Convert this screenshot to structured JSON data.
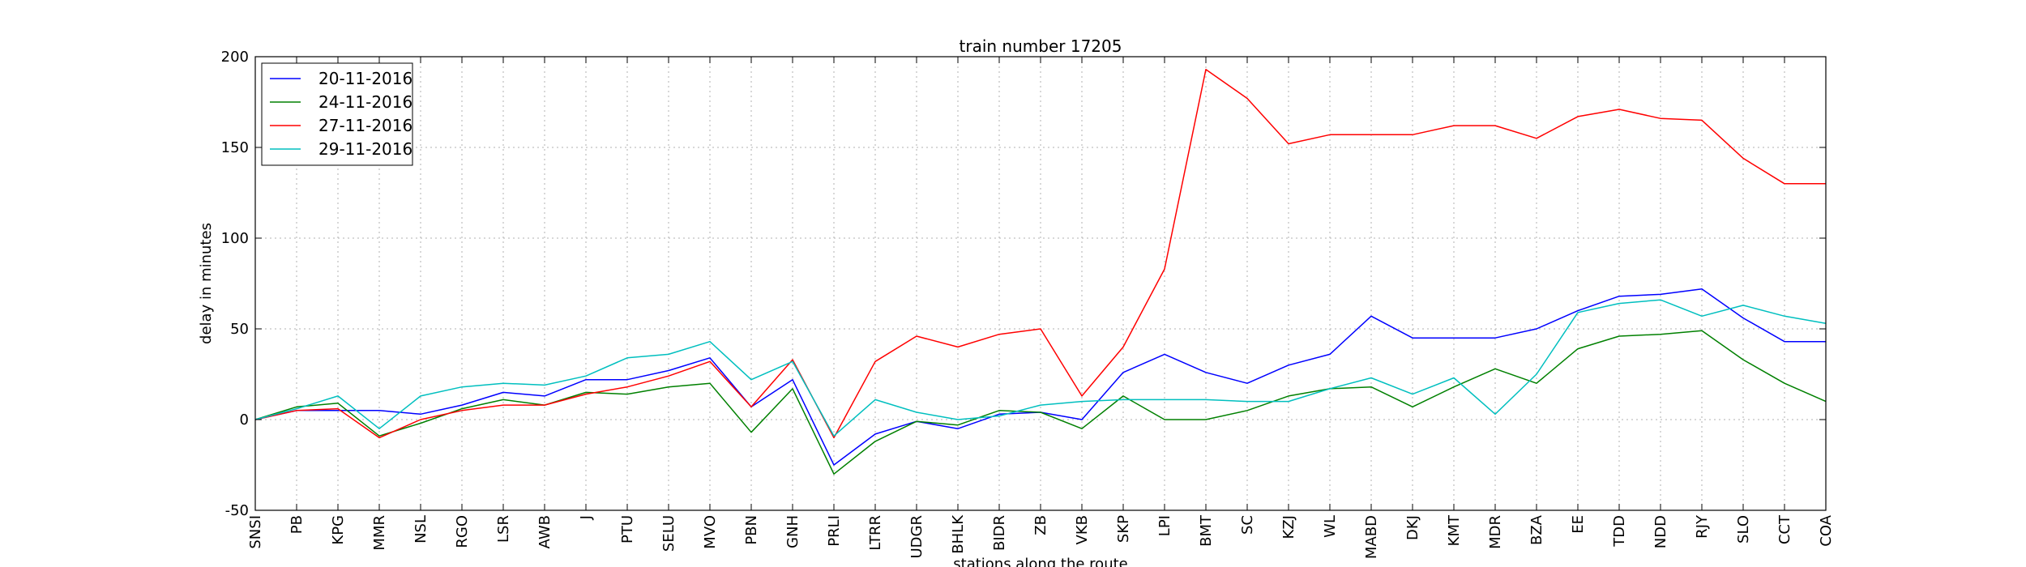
{
  "chart_data": {
    "type": "line",
    "title": "train number 17205",
    "xlabel": "stations along the route",
    "ylabel": "delay in minutes",
    "ylim": [
      -50,
      200
    ],
    "yticks": [
      -50,
      0,
      50,
      100,
      150,
      200
    ],
    "grid": true,
    "legend_position": "top-left",
    "categories": [
      "SNSI",
      "PB",
      "KPG",
      "MMR",
      "NSL",
      "RGO",
      "LSR",
      "AWB",
      "J",
      "PTU",
      "SELU",
      "MVO",
      "PBN",
      "GNH",
      "PRLI",
      "LTRR",
      "UDGR",
      "BHLK",
      "BIDR",
      "ZB",
      "VKB",
      "SKP",
      "LPI",
      "BMT",
      "SC",
      "KZJ",
      "WL",
      "MABD",
      "DKJ",
      "KMT",
      "MDR",
      "BZA",
      "EE",
      "TDD",
      "NDD",
      "RJY",
      "SLO",
      "CCT",
      "COA"
    ],
    "series": [
      {
        "name": "20-11-2016",
        "color": "#0000ff",
        "values": [
          0,
          5,
          5,
          5,
          3,
          8,
          15,
          13,
          22,
          22,
          27,
          34,
          7,
          22,
          -25,
          -8,
          -1,
          -5,
          3,
          4,
          0,
          26,
          36,
          26,
          20,
          30,
          36,
          57,
          45,
          45,
          45,
          50,
          60,
          68,
          69,
          72,
          56,
          43,
          43
        ]
      },
      {
        "name": "24-11-2016",
        "color": "#008000",
        "values": [
          0,
          7,
          9,
          -9,
          -2,
          6,
          11,
          8,
          15,
          14,
          18,
          20,
          -7,
          17,
          -30,
          -12,
          -1,
          -3,
          5,
          4,
          -5,
          13,
          0,
          0,
          5,
          13,
          17,
          18,
          7,
          18,
          28,
          20,
          39,
          46,
          47,
          49,
          33,
          20,
          10
        ]
      },
      {
        "name": "27-11-2016",
        "color": "#ff0000",
        "values": [
          0,
          5,
          6,
          -10,
          0,
          5,
          8,
          8,
          14,
          18,
          24,
          32,
          7,
          33,
          -10,
          32,
          46,
          40,
          47,
          50,
          13,
          40,
          83,
          193,
          177,
          152,
          157,
          157,
          157,
          162,
          162,
          155,
          167,
          171,
          166,
          165,
          144,
          130,
          130
        ]
      },
      {
        "name": "29-11-2016",
        "color": "#00bfbf",
        "values": [
          0,
          6,
          13,
          -5,
          13,
          18,
          20,
          19,
          24,
          34,
          36,
          43,
          22,
          32,
          -9,
          11,
          4,
          0,
          2,
          8,
          10,
          11,
          11,
          11,
          10,
          10,
          17,
          23,
          14,
          23,
          3,
          25,
          59,
          64,
          66,
          57,
          63,
          57,
          53
        ]
      }
    ]
  }
}
